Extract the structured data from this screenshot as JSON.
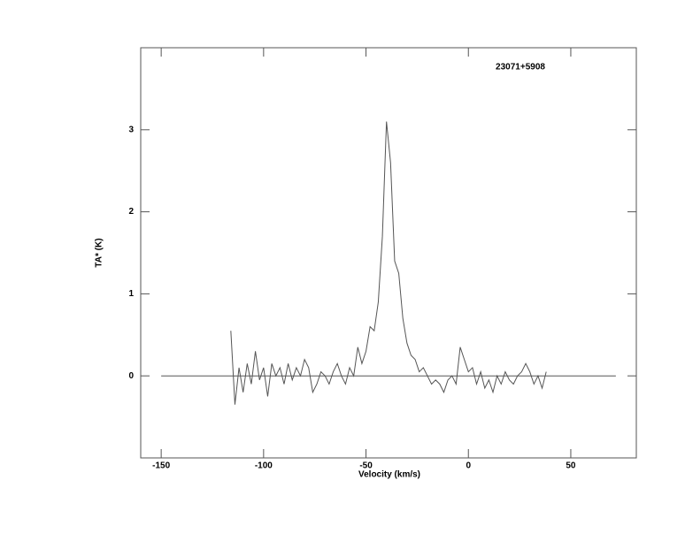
{
  "chart_data": {
    "type": "line",
    "title": "23071+5908",
    "xlabel": "Velocity (km/s)",
    "ylabel": "TA* (K)",
    "x": [
      -116,
      -114,
      -112,
      -110,
      -108,
      -106,
      -104,
      -102,
      -100,
      -98,
      -96,
      -94,
      -92,
      -90,
      -88,
      -86,
      -84,
      -82,
      -80,
      -78,
      -76,
      -74,
      -72,
      -70,
      -68,
      -66,
      -64,
      -62,
      -60,
      -58,
      -56,
      -54,
      -52,
      -50,
      -48,
      -46,
      -44,
      -42,
      -40,
      -38,
      -36,
      -34,
      -32,
      -30,
      -28,
      -26,
      -24,
      -22,
      -20,
      -18,
      -16,
      -14,
      -12,
      -10,
      -8,
      -6,
      -4,
      -2,
      0,
      2,
      4,
      6,
      8,
      10,
      12,
      14,
      16,
      18,
      20,
      22,
      24,
      26,
      28,
      30,
      32,
      34,
      36,
      38
    ],
    "series": [
      {
        "color": "#555555",
        "values": [
          0.55,
          -0.35,
          0.1,
          -0.2,
          0.15,
          -0.1,
          0.3,
          -0.05,
          0.1,
          -0.25,
          0.15,
          0.0,
          0.1,
          -0.1,
          0.15,
          -0.05,
          0.1,
          0.0,
          0.2,
          0.1,
          -0.2,
          -0.1,
          0.05,
          0.0,
          -0.1,
          0.05,
          0.15,
          0.0,
          -0.1,
          0.1,
          0.0,
          0.35,
          0.15,
          0.3,
          0.6,
          0.55,
          0.9,
          1.7,
          3.1,
          2.6,
          1.4,
          1.25,
          0.7,
          0.4,
          0.25,
          0.2,
          0.05,
          0.1,
          0.0,
          -0.1,
          -0.05,
          -0.1,
          -0.2,
          -0.05,
          0.0,
          -0.1,
          0.35,
          0.2,
          0.05,
          0.1,
          -0.1,
          0.05,
          -0.15,
          -0.05,
          -0.2,
          0.0,
          -0.1,
          0.05,
          -0.05,
          -0.1,
          0.0,
          0.05,
          0.15,
          0.05,
          -0.1,
          0.0,
          -0.15,
          0.05
        ]
      }
    ],
    "baseline": {
      "x": [
        -150,
        72
      ],
      "y": 0
    },
    "xlim": [
      -160,
      82
    ],
    "ylim": [
      -1,
      4
    ],
    "xticks": [
      -150,
      -100,
      -50,
      0,
      50
    ],
    "yticks": [
      0,
      1,
      2,
      3
    ]
  }
}
